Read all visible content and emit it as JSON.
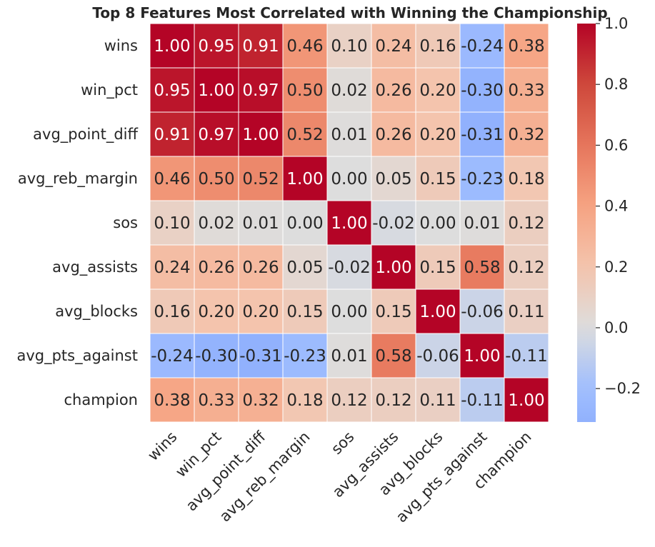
{
  "chart_data": {
    "type": "heatmap",
    "title": "Top 8 Features Most Correlated with Winning the Championship",
    "labels": [
      "wins",
      "win_pct",
      "avg_point_diff",
      "avg_reb_margin",
      "sos",
      "avg_assists",
      "avg_blocks",
      "avg_pts_against",
      "champion"
    ],
    "matrix": [
      [
        1.0,
        0.95,
        0.91,
        0.46,
        0.1,
        0.24,
        0.16,
        -0.24,
        0.38
      ],
      [
        0.95,
        1.0,
        0.97,
        0.5,
        0.02,
        0.26,
        0.2,
        -0.3,
        0.33
      ],
      [
        0.91,
        0.97,
        1.0,
        0.52,
        0.01,
        0.26,
        0.2,
        -0.31,
        0.32
      ],
      [
        0.46,
        0.5,
        0.52,
        1.0,
        0.0,
        0.05,
        0.15,
        -0.23,
        0.18
      ],
      [
        0.1,
        0.02,
        0.01,
        0.0,
        1.0,
        -0.02,
        0.0,
        0.01,
        0.12
      ],
      [
        0.24,
        0.26,
        0.26,
        0.05,
        -0.02,
        1.0,
        0.15,
        0.58,
        0.12
      ],
      [
        0.16,
        0.2,
        0.2,
        0.15,
        0.0,
        0.15,
        1.0,
        -0.06,
        0.11
      ],
      [
        -0.24,
        -0.3,
        -0.31,
        -0.23,
        0.01,
        0.58,
        -0.06,
        1.0,
        -0.11
      ],
      [
        0.38,
        0.33,
        0.32,
        0.18,
        0.12,
        0.12,
        0.11,
        -0.11,
        1.0
      ]
    ],
    "colormap": "coolwarm",
    "center": 0,
    "value_range": [
      -0.31,
      1.0
    ],
    "annotations": true,
    "annotation_format": "0.00",
    "colorbar": {
      "ticks": [
        1.0,
        0.8,
        0.6,
        0.4,
        0.2,
        0.0,
        -0.2
      ],
      "tick_labels": [
        "1.0",
        "0.8",
        "0.6",
        "0.4",
        "0.2",
        "0.0",
        "−0.2"
      ],
      "position": "right"
    },
    "grid_lines": "white"
  }
}
